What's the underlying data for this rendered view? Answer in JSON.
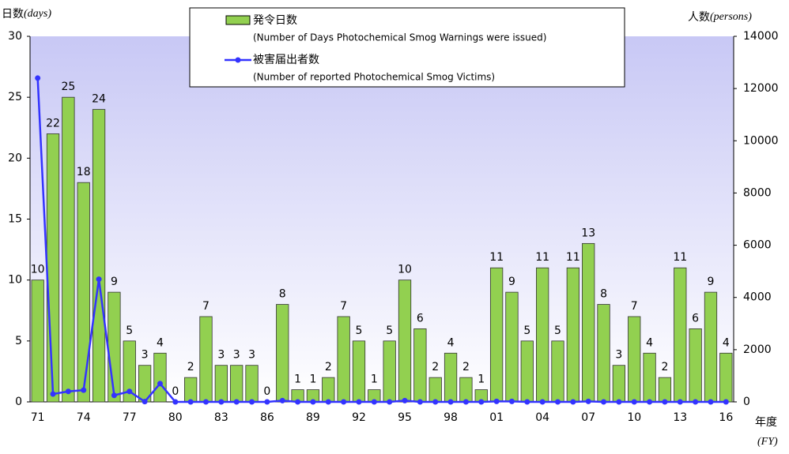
{
  "chart_data": {
    "type": "bar-line",
    "y_label": "日数",
    "y_label_unit": "(days)",
    "y2_label": "人数",
    "y2_label_unit": "(persons)",
    "x_label": "年度",
    "x_label_unit": "(FY)",
    "categories": [
      "71",
      null,
      null,
      "74",
      null,
      null,
      "77",
      null,
      null,
      "80",
      null,
      null,
      "83",
      null,
      null,
      "86",
      null,
      null,
      "89",
      null,
      null,
      "92",
      null,
      null,
      "95",
      null,
      null,
      "98",
      null,
      null,
      "01",
      null,
      null,
      "04",
      null,
      null,
      "07",
      null,
      null,
      "10",
      null,
      null,
      "13",
      null,
      null,
      "16"
    ],
    "series": [
      {
        "name": "発令日数",
        "description": "(Number of Days Photochemical Smog Warnings were issued)",
        "type": "bar",
        "color": "#92d050",
        "values": [
          10,
          22,
          25,
          18,
          24,
          9,
          5,
          3,
          4,
          0,
          2,
          7,
          3,
          3,
          3,
          0,
          8,
          1,
          1,
          2,
          7,
          5,
          1,
          5,
          10,
          6,
          2,
          4,
          2,
          1,
          11,
          9,
          5,
          11,
          5,
          11,
          13,
          8,
          3,
          7,
          4,
          2,
          11,
          6,
          9,
          4
        ]
      },
      {
        "name": "被害届出者数",
        "description": "(Number of reported Photochemical Smog Victims)",
        "type": "line",
        "color": "#3333ff",
        "axis": "y2",
        "values": [
          12400,
          300,
          400,
          450,
          4700,
          250,
          400,
          10,
          700,
          0,
          0,
          0,
          0,
          0,
          0,
          0,
          50,
          0,
          0,
          0,
          0,
          0,
          0,
          0,
          50,
          0,
          0,
          0,
          0,
          0,
          20,
          20,
          0,
          0,
          0,
          0,
          20,
          0,
          0,
          0,
          0,
          0,
          0,
          0,
          0,
          0
        ]
      }
    ],
    "ylim": [
      0,
      30
    ],
    "yticks": [
      0,
      5,
      10,
      15,
      20,
      25,
      30
    ],
    "y2lim": [
      0,
      14000
    ],
    "y2ticks": [
      0,
      2000,
      4000,
      6000,
      8000,
      10000,
      12000,
      14000
    ]
  }
}
